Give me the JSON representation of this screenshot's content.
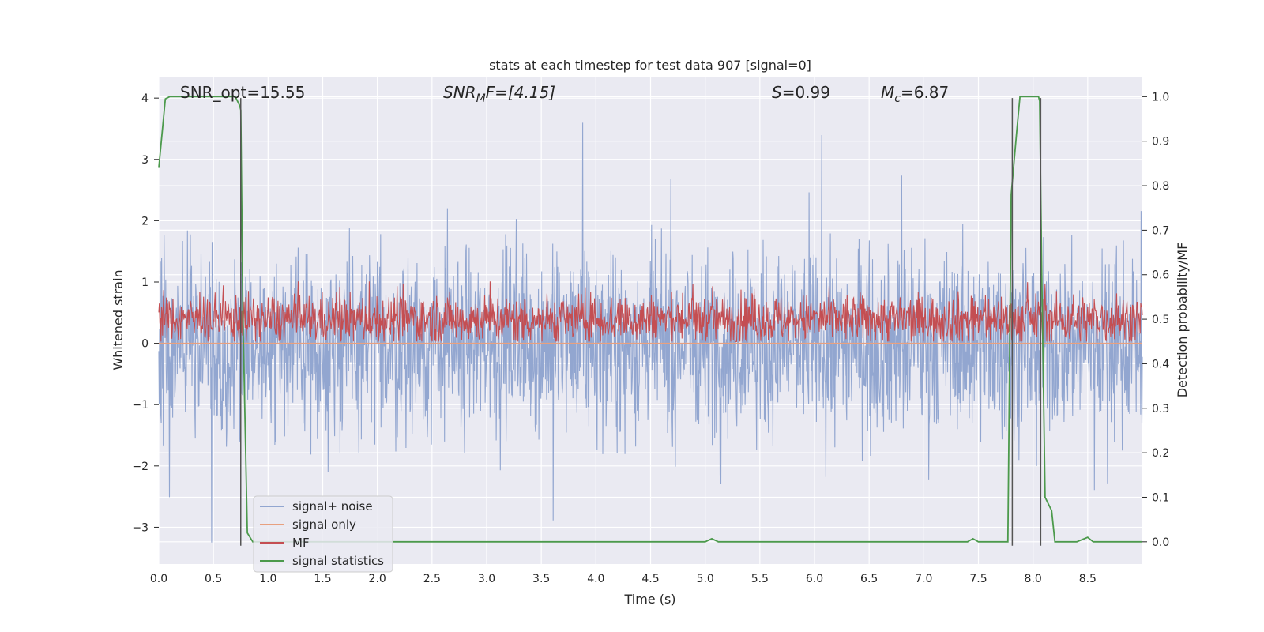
{
  "chart_data": {
    "type": "line",
    "title": "stats at each timestep for test data 907 [signal=0]",
    "xlabel": "Time (s)",
    "ylabel": "Whitened strain",
    "y2label": "Detection probability/MF",
    "xlim": [
      0,
      9.0
    ],
    "ylim": [
      -3.6,
      4.35
    ],
    "y2lim": [
      -0.05,
      1.045
    ],
    "xticks": [
      "0.0",
      "0.5",
      "1.0",
      "1.5",
      "2.0",
      "2.5",
      "3.0",
      "3.5",
      "4.0",
      "4.5",
      "5.0",
      "5.5",
      "6.0",
      "6.5",
      "7.0",
      "7.5",
      "8.0",
      "8.5"
    ],
    "yticks": [
      "4",
      "3",
      "2",
      "1",
      "0",
      "−1",
      "−2",
      "−3"
    ],
    "y2ticks": [
      "1.0",
      "0.9",
      "0.8",
      "0.7",
      "0.6",
      "0.5",
      "0.4",
      "0.3",
      "0.2",
      "0.1",
      "0.0"
    ],
    "grid": true,
    "legend_position": "lower-left",
    "annotations": {
      "snr_opt": "SNR_opt=15.55",
      "snr_mf_base": "SNR",
      "snr_mf_sub": "M",
      "snr_mf_rest": "F=[4.15]",
      "s_base": "S",
      "s_rest": "=0.99",
      "mc_base": "M",
      "mc_sub": "c",
      "mc_rest": "=6.87"
    },
    "series": [
      {
        "name": "signal+ noise",
        "color": "#92a6d0",
        "axis": "left",
        "noise_sigma": 1.0,
        "x_range": [
          0,
          9.0
        ]
      },
      {
        "name": "signal only",
        "color": "#e8a07f",
        "axis": "left",
        "values": [
          0,
          0
        ]
      },
      {
        "name": "MF",
        "color": "#c44e52",
        "axis": "right",
        "center": 0.5,
        "x_range": [
          0,
          9.0
        ]
      },
      {
        "name": "signal statistics",
        "color": "#4c9a4c",
        "axis": "right",
        "x": [
          0.0,
          0.06,
          0.1,
          0.2,
          0.3,
          0.4,
          0.5,
          0.6,
          0.7,
          0.74,
          0.75,
          0.77,
          0.81,
          0.86,
          0.9,
          1.0,
          2.0,
          3.0,
          4.0,
          4.9,
          5.0,
          5.06,
          5.12,
          5.2,
          6.0,
          7.0,
          7.3,
          7.4,
          7.45,
          7.5,
          7.7,
          7.77,
          7.8,
          7.85,
          7.88,
          7.95,
          8.05,
          8.06,
          8.08,
          8.11,
          8.17,
          8.2,
          8.3,
          8.4,
          8.45,
          8.5,
          8.55,
          8.6,
          8.7,
          8.8,
          9.0
        ],
        "values": [
          0.84,
          0.995,
          1.0,
          1.0,
          1.0,
          1.0,
          1.0,
          1.0,
          1.0,
          0.98,
          0.97,
          0.5,
          0.02,
          0.0,
          0.0,
          0.0,
          0.0,
          0.0,
          0.0,
          0.0,
          0.0,
          0.007,
          0.0,
          0.0,
          0.0,
          0.0,
          0.0,
          0.0,
          0.007,
          0.0,
          0.0,
          0.0,
          0.78,
          0.92,
          1.0,
          1.0,
          1.0,
          0.99,
          0.6,
          0.1,
          0.07,
          0.0,
          0.0,
          0.0,
          0.005,
          0.01,
          0.0,
          0.0,
          0.0,
          0.0,
          0.0
        ]
      }
    ],
    "vlines": [
      {
        "x": 0.75,
        "ymin": -3.3,
        "ymax": 4.0,
        "color": "#555555"
      },
      {
        "x": 7.81,
        "ymin": -3.3,
        "ymax": 4.0,
        "color": "#555555"
      },
      {
        "x": 8.07,
        "ymin": -3.3,
        "ymax": 4.0,
        "color": "#555555"
      }
    ]
  }
}
